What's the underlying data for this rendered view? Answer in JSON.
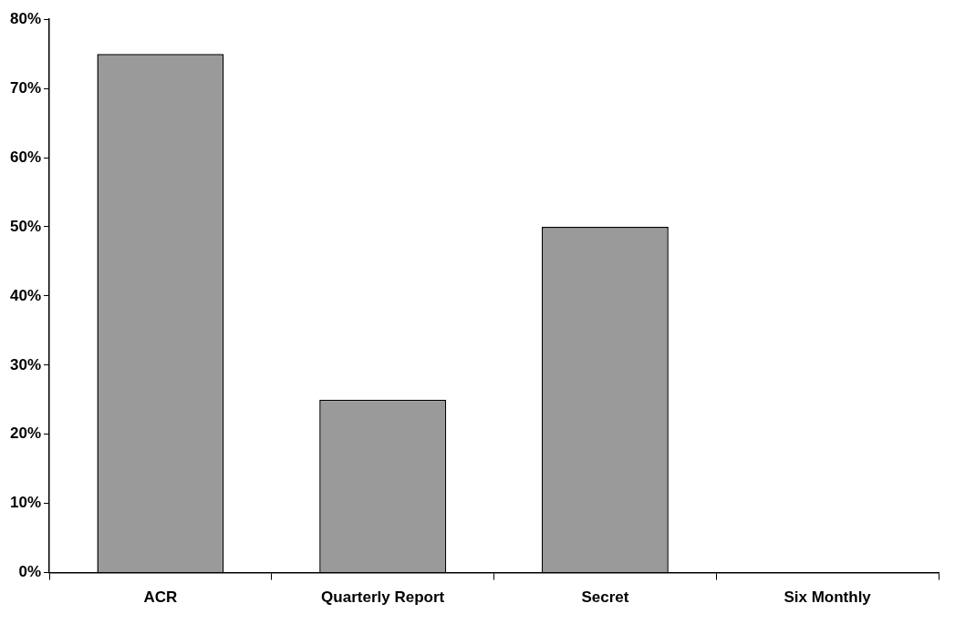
{
  "chart_data": {
    "type": "bar",
    "categories": [
      "ACR",
      "Quarterly Report",
      "Secret",
      "Six Monthly"
    ],
    "values": [
      75,
      25,
      50,
      0
    ],
    "color": "#9a9a9a",
    "ylim": [
      0,
      80
    ],
    "yticks": [
      {
        "value": 0,
        "label": "0%"
      },
      {
        "value": 10,
        "label": "10%"
      },
      {
        "value": 20,
        "label": "20%"
      },
      {
        "value": 30,
        "label": "30%"
      },
      {
        "value": 40,
        "label": "40%"
      },
      {
        "value": 50,
        "label": "50%"
      },
      {
        "value": 60,
        "label": "60%"
      },
      {
        "value": 70,
        "label": "70%"
      },
      {
        "value": 80,
        "label": "80%"
      }
    ],
    "grid": false,
    "legend": false
  }
}
